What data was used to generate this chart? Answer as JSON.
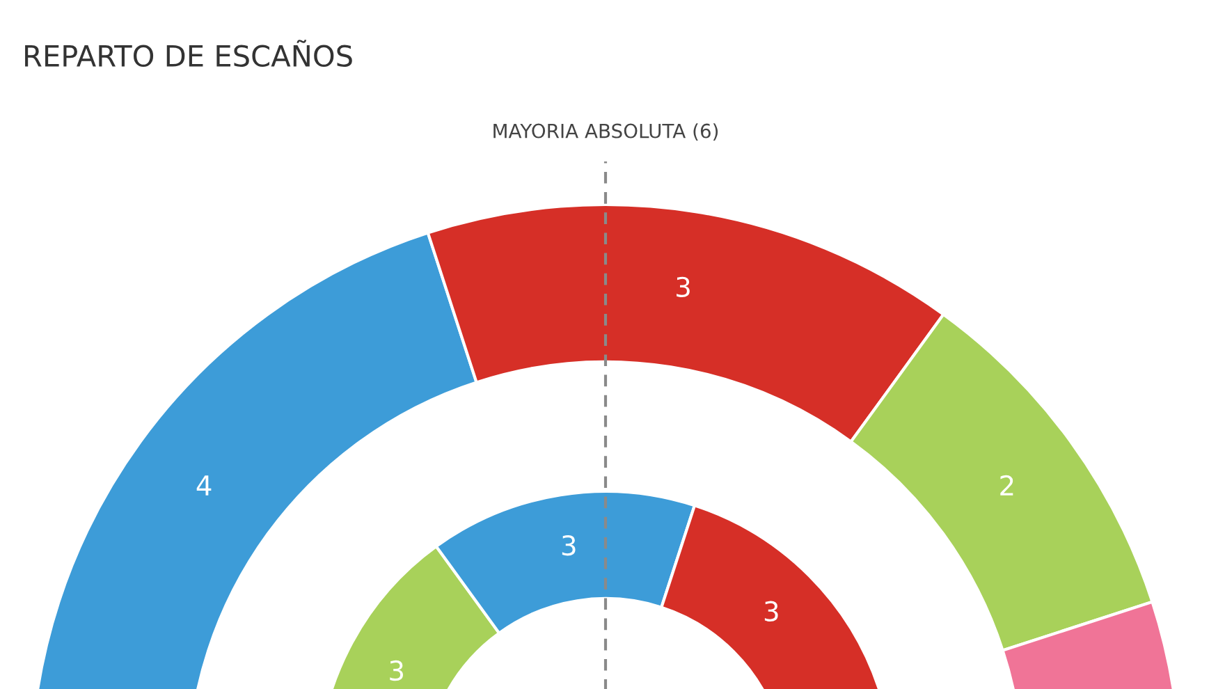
{
  "chart_data": {
    "type": "donut",
    "title": "REPARTO DE ESCAÑOS",
    "series": [
      {
        "values": [
          4,
          3,
          2,
          1
        ],
        "value_labels": [
          "4",
          "3",
          "2",
          null
        ],
        "colors": [
          "#3d9cd8",
          "#d62f27",
          "#a8d15a",
          "#f07497"
        ]
      },
      {
        "values": [
          3,
          3,
          3,
          null
        ],
        "value_labels": [
          "3",
          "3",
          "3",
          null
        ],
        "colors": [
          "#a8d15a",
          "#3d9cd8",
          "#d62f27",
          null
        ]
      }
    ],
    "ref_lines": [
      {
        "axis": "x",
        "label": "MAYORIA ABSOLUTA (6)",
        "color": "#8a8a8a",
        "line_style": "dashed"
      }
    ]
  }
}
